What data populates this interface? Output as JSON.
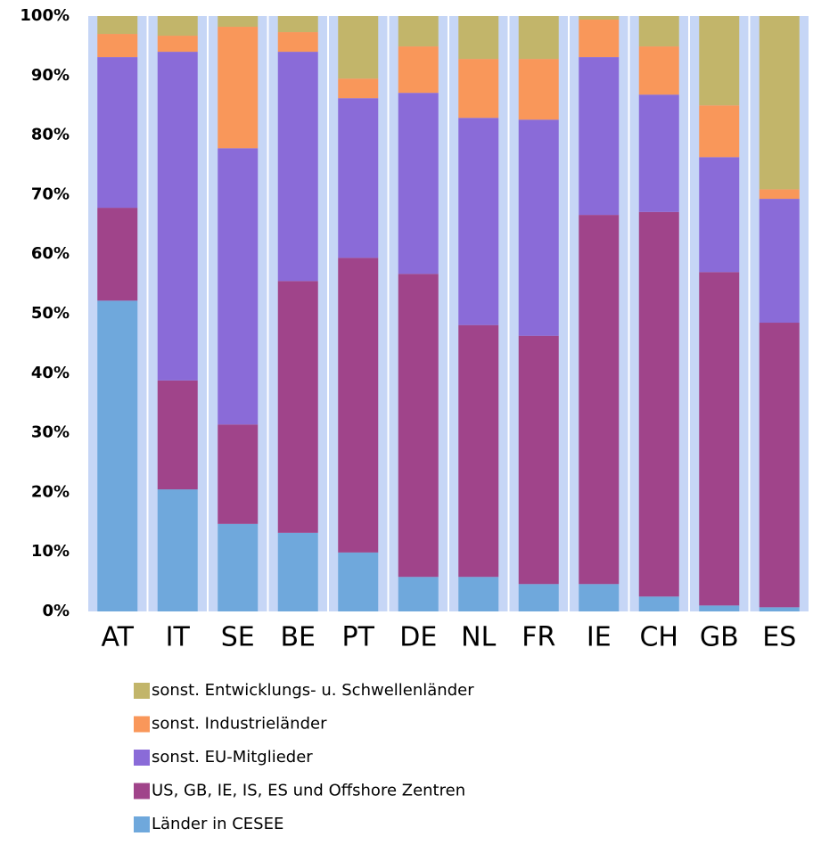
{
  "chart_data": {
    "type": "stacked_bar",
    "categories": [
      "AT",
      "IT",
      "SE",
      "BE",
      "PT",
      "DE",
      "NL",
      "FR",
      "IE",
      "CH",
      "GB",
      "ES"
    ],
    "series": [
      {
        "name": "Länder in CESEE",
        "color": "#6fa8dc",
        "values": [
          52.2,
          20.5,
          14.7,
          13.2,
          9.9,
          5.8,
          5.8,
          4.6,
          4.6,
          2.5,
          1.0,
          0.7
        ]
      },
      {
        "name": "US, GB, IE, IS, ES und Offshore Zentren",
        "color": "#a0448a",
        "values": [
          15.6,
          18.3,
          16.7,
          42.3,
          49.5,
          50.9,
          42.3,
          41.7,
          62.0,
          64.6,
          56.0,
          47.8
        ]
      },
      {
        "name": "sonst. EU-Mitglieder",
        "color": "#8a6bd8",
        "values": [
          25.3,
          55.2,
          46.4,
          38.5,
          26.8,
          30.4,
          34.8,
          36.3,
          26.5,
          19.7,
          19.3,
          20.8
        ]
      },
      {
        "name": "sonst. Industrieländer",
        "color": "#f9975a",
        "values": [
          3.9,
          2.7,
          20.4,
          3.3,
          3.3,
          7.8,
          9.9,
          10.2,
          6.3,
          8.1,
          8.7,
          1.6
        ]
      },
      {
        "name": "sonst. Entwicklungs- u. Schwellenländer",
        "color": "#c2b56a",
        "values": [
          3.0,
          3.3,
          1.8,
          2.7,
          10.5,
          5.1,
          7.2,
          7.2,
          0.6,
          5.1,
          15.0,
          29.1
        ]
      }
    ],
    "ylim": [
      0,
      100
    ],
    "yticks": [
      {
        "value": 0,
        "label": "0%"
      },
      {
        "value": 10,
        "label": "10%"
      },
      {
        "value": 20,
        "label": "20%"
      },
      {
        "value": 30,
        "label": "30%"
      },
      {
        "value": 40,
        "label": "40%"
      },
      {
        "value": 50,
        "label": "50%"
      },
      {
        "value": 60,
        "label": "60%"
      },
      {
        "value": 70,
        "label": "70%"
      },
      {
        "value": 80,
        "label": "80%"
      },
      {
        "value": 90,
        "label": "90%"
      },
      {
        "value": 100,
        "label": "100%"
      }
    ],
    "grid": false
  }
}
